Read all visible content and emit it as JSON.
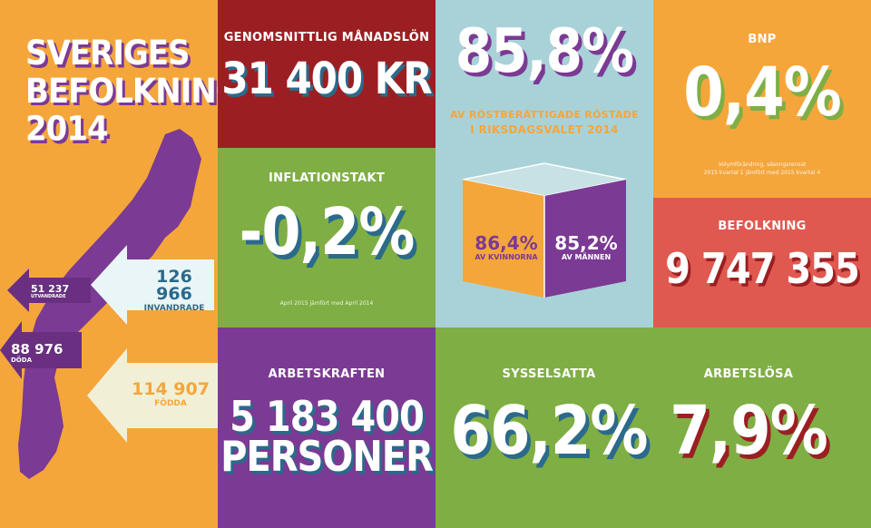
{
  "colors": {
    "orange": "#f4a63b",
    "purple": "#7b3a93",
    "darkred": "#9b1f22",
    "green": "#7fae44",
    "lightblue": "#a9d2d8",
    "coral": "#e05950",
    "teal": "#2b6a8b",
    "cream": "#f1f0d6"
  },
  "title": {
    "line1": "SVERIGES",
    "line2": "BEFOLKNING",
    "line3": "2014"
  },
  "map": {
    "immigrants_value": "126 966",
    "immigrants_label": "INVANDRADE",
    "emigrants_value": "51 237",
    "emigrants_label": "UTVANDRADE",
    "deaths_value": "88 976",
    "deaths_label": "DÖDA",
    "births_value": "114 907",
    "births_label": "FÖDDA"
  },
  "salary": {
    "label": "GENOMSNITTLIG MÅNADSLÖN",
    "value": "31 400 KR"
  },
  "inflation": {
    "label": "INFLATIONSTAKT",
    "value": "-0,2%",
    "note": "April 2015 jämfört med April 2014"
  },
  "labor": {
    "label": "ARBETSKRAFTEN",
    "value": "5 183 400",
    "unit": "PERSONER"
  },
  "election": {
    "value": "85,8%",
    "caption_line1": "AV RÖSTBERÄTTIGADE RÖSTADE",
    "caption_line2": "I RIKSDAGSVALET 2014",
    "women_value": "86,4%",
    "women_label": "AV KVINNORNA",
    "men_value": "85,2%",
    "men_label": "AV MÄNNEN"
  },
  "gdp": {
    "label": "BNP",
    "value": "0,4%",
    "note1": "Volymförändring, säsongsrensat",
    "note2": "2015 kvartal 1 jämfört med 2015 kvartal 4"
  },
  "population": {
    "label": "BEFOLKNING",
    "value": "9 747 355"
  },
  "employed": {
    "label": "SYSSELSATTA",
    "value": "66,2%"
  },
  "unemployed": {
    "label": "ARBETSLÖSA",
    "value": "7,9%"
  }
}
